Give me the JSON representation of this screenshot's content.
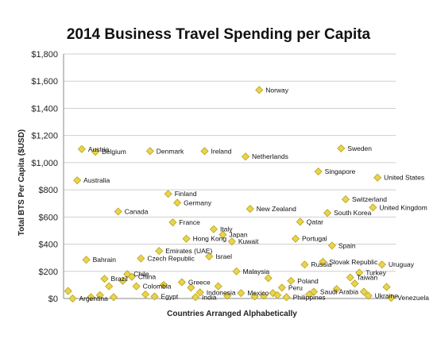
{
  "chart_data": {
    "type": "scatter",
    "title": "2014 Business Travel Spending per Capita",
    "xlabel": "Countries Arranged Alphabetically",
    "ylabel": "Total BTS Per Capita ($USD)",
    "ylim": [
      0,
      1800
    ],
    "yticks": [
      "$0",
      "$200",
      "$400",
      "$600",
      "$800",
      "$1,000",
      "$1,200",
      "$1,400",
      "$1,600",
      "$1,800"
    ],
    "grid": true,
    "marker_color": "#e8d44d",
    "series": [
      {
        "points": [
          {
            "label": "",
            "x": 1,
            "y": 55
          },
          {
            "label": "Argentina",
            "x": 2,
            "y": 0
          },
          {
            "label": "Australia",
            "x": 3,
            "y": 870
          },
          {
            "label": "Austria",
            "x": 4,
            "y": 1100
          },
          {
            "label": "Bahrain",
            "x": 5,
            "y": 285
          },
          {
            "label": "",
            "x": 6,
            "y": 10
          },
          {
            "label": "Belgium",
            "x": 7,
            "y": 1080
          },
          {
            "label": "",
            "x": 8,
            "y": 25
          },
          {
            "label": "Brazil",
            "x": 9,
            "y": 145
          },
          {
            "label": "",
            "x": 10,
            "y": 90
          },
          {
            "label": "",
            "x": 11,
            "y": 10
          },
          {
            "label": "Canada",
            "x": 12,
            "y": 640
          },
          {
            "label": "",
            "x": 13,
            "y": 130
          },
          {
            "label": "Chile",
            "x": 14,
            "y": 180
          },
          {
            "label": "China",
            "x": 15,
            "y": 160
          },
          {
            "label": "Colombia",
            "x": 16,
            "y": 90
          },
          {
            "label": "Czech Republic",
            "x": 17,
            "y": 295
          },
          {
            "label": "",
            "x": 18,
            "y": 30
          },
          {
            "label": "Denmark",
            "x": 19,
            "y": 1085
          },
          {
            "label": "Egypt",
            "x": 20,
            "y": 15
          },
          {
            "label": "Emirates (UAE)",
            "x": 21,
            "y": 350
          },
          {
            "label": "",
            "x": 22,
            "y": 100
          },
          {
            "label": "Finland",
            "x": 23,
            "y": 770
          },
          {
            "label": "France",
            "x": 24,
            "y": 560
          },
          {
            "label": "Germany",
            "x": 25,
            "y": 705
          },
          {
            "label": "Greece",
            "x": 26,
            "y": 120
          },
          {
            "label": "Hong Kong",
            "x": 27,
            "y": 440
          },
          {
            "label": "",
            "x": 28,
            "y": 80
          },
          {
            "label": "India",
            "x": 29,
            "y": 10
          },
          {
            "label": "Indonesia",
            "x": 30,
            "y": 45
          },
          {
            "label": "Ireland",
            "x": 31,
            "y": 1085
          },
          {
            "label": "Israel",
            "x": 32,
            "y": 310
          },
          {
            "label": "Italy",
            "x": 33,
            "y": 510
          },
          {
            "label": "",
            "x": 34,
            "y": 90
          },
          {
            "label": "Japan",
            "x": 35,
            "y": 470
          },
          {
            "label": "",
            "x": 36,
            "y": 20
          },
          {
            "label": "Kuwait",
            "x": 37,
            "y": 420
          },
          {
            "label": "Malaysia",
            "x": 38,
            "y": 200
          },
          {
            "label": "Mexico",
            "x": 39,
            "y": 40
          },
          {
            "label": "Netherlands",
            "x": 40,
            "y": 1045
          },
          {
            "label": "New Zealand",
            "x": 41,
            "y": 660
          },
          {
            "label": "",
            "x": 42,
            "y": 15
          },
          {
            "label": "Norway",
            "x": 43,
            "y": 1535
          },
          {
            "label": "",
            "x": 44,
            "y": 20
          },
          {
            "label": "",
            "x": 45,
            "y": 150
          },
          {
            "label": "",
            "x": 46,
            "y": 40
          },
          {
            "label": "",
            "x": 47,
            "y": 25
          },
          {
            "label": "Peru",
            "x": 48,
            "y": 80
          },
          {
            "label": "Philippines",
            "x": 49,
            "y": 10
          },
          {
            "label": "Poland",
            "x": 50,
            "y": 130
          },
          {
            "label": "Portugal",
            "x": 51,
            "y": 440
          },
          {
            "label": "Qatar",
            "x": 52,
            "y": 565
          },
          {
            "label": "Russia",
            "x": 53,
            "y": 250
          },
          {
            "label": "",
            "x": 54,
            "y": 30
          },
          {
            "label": "Saudi Arabia",
            "x": 55,
            "y": 50
          },
          {
            "label": "Singapore",
            "x": 56,
            "y": 935
          },
          {
            "label": "Slovak Republic",
            "x": 57,
            "y": 270
          },
          {
            "label": "South Korea",
            "x": 58,
            "y": 630
          },
          {
            "label": "Spain",
            "x": 59,
            "y": 390
          },
          {
            "label": "",
            "x": 60,
            "y": 70
          },
          {
            "label": "Sweden",
            "x": 61,
            "y": 1105
          },
          {
            "label": "Switzerland",
            "x": 62,
            "y": 730
          },
          {
            "label": "Taiwan",
            "x": 63,
            "y": 155
          },
          {
            "label": "",
            "x": 64,
            "y": 110
          },
          {
            "label": "Turkey",
            "x": 65,
            "y": 190
          },
          {
            "label": "",
            "x": 66,
            "y": 50
          },
          {
            "label": "Ukraine",
            "x": 67,
            "y": 20
          },
          {
            "label": "United Kingdom",
            "x": 68,
            "y": 670
          },
          {
            "label": "United States",
            "x": 69,
            "y": 890
          },
          {
            "label": "Uruguay",
            "x": 70,
            "y": 250
          },
          {
            "label": "",
            "x": 71,
            "y": 85
          },
          {
            "label": "Venezuela",
            "x": 72,
            "y": 5
          }
        ]
      }
    ]
  }
}
